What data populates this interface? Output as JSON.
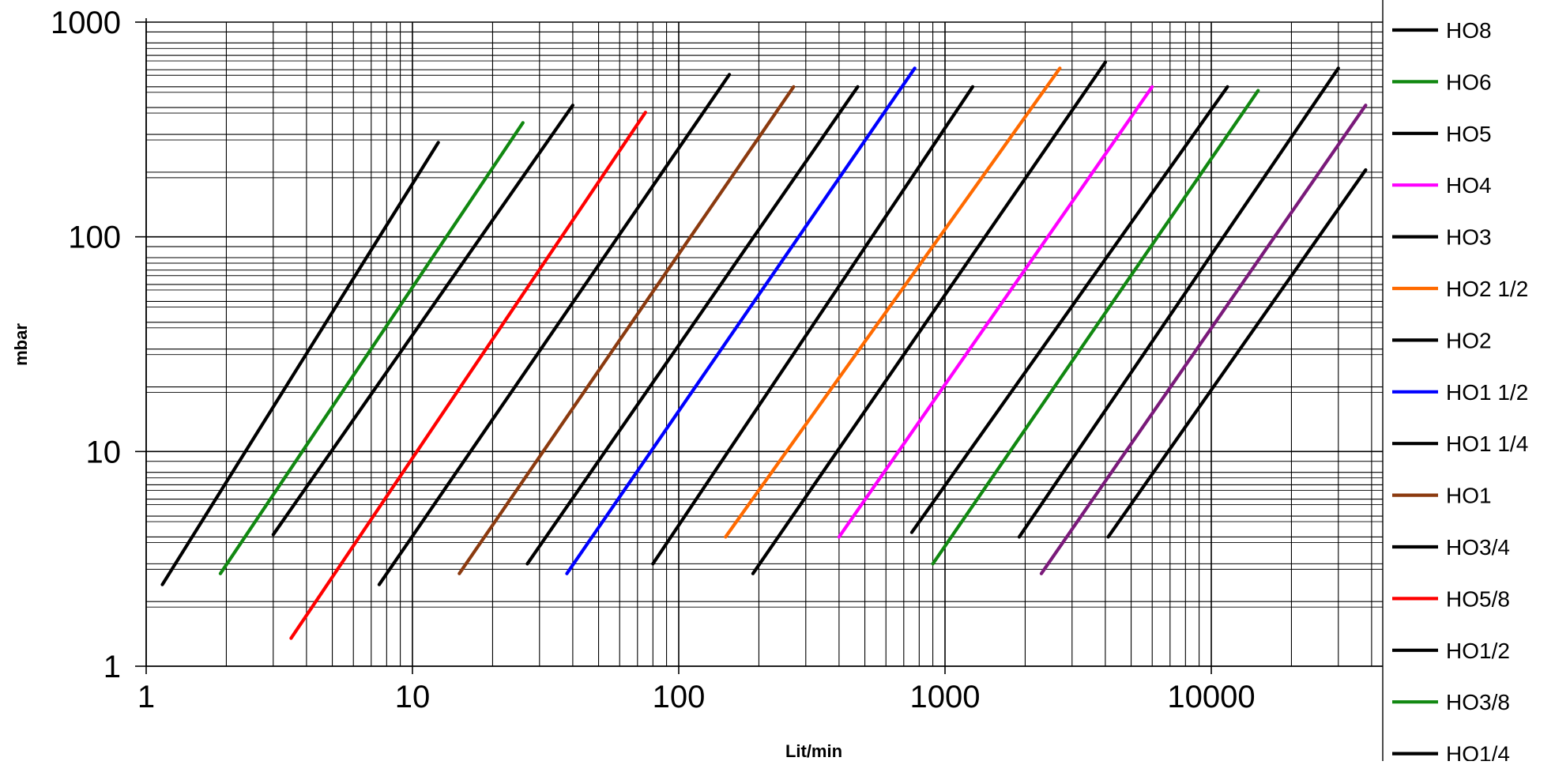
{
  "chart_data": {
    "type": "line",
    "xscale": "log",
    "yscale": "log",
    "xlabel": "Lit/min",
    "ylabel": "mbar",
    "xlim": [
      1,
      40000
    ],
    "ylim": [
      1,
      1000
    ],
    "grid": true,
    "legend_placement": "right",
    "x_ticks": [
      1,
      10,
      100,
      1000,
      10000
    ],
    "x_tick_labels": [
      "1",
      "10",
      "100",
      "1000",
      "10000"
    ],
    "y_ticks": [
      1,
      10,
      100,
      1000
    ],
    "y_tick_labels": [
      "1",
      "10",
      "100",
      "1000"
    ],
    "series": [
      {
        "name": "HO1/4",
        "color": "#000000",
        "points": [
          [
            1.15,
            2.4
          ],
          [
            12.5,
            275
          ]
        ]
      },
      {
        "name": "HO3/8",
        "color": "#118811",
        "points": [
          [
            1.9,
            2.7
          ],
          [
            26,
            340
          ]
        ]
      },
      {
        "name": "HO1/2",
        "color": "#000000",
        "points": [
          [
            3.0,
            4.1
          ],
          [
            40,
            410
          ]
        ]
      },
      {
        "name": "HO5/8",
        "color": "#ff0000",
        "points": [
          [
            3.5,
            1.35
          ],
          [
            75,
            380
          ]
        ]
      },
      {
        "name": "HO3/4",
        "color": "#000000",
        "points": [
          [
            7.5,
            2.4
          ],
          [
            155,
            570
          ]
        ]
      },
      {
        "name": "HO1",
        "color": "#8b3a0f",
        "points": [
          [
            15,
            2.7
          ],
          [
            270,
            500
          ]
        ]
      },
      {
        "name": "HO1 1/4",
        "color": "#000000",
        "points": [
          [
            27,
            3.0
          ],
          [
            470,
            500
          ]
        ]
      },
      {
        "name": "HO1 1/2",
        "color": "#0000ff",
        "points": [
          [
            38,
            2.7
          ],
          [
            770,
            610
          ]
        ]
      },
      {
        "name": "HO2",
        "color": "#000000",
        "points": [
          [
            80,
            3.0
          ],
          [
            1270,
            500
          ]
        ]
      },
      {
        "name": "HO2 1/2",
        "color": "#ff6a00",
        "points": [
          [
            150,
            4.0
          ],
          [
            2700,
            610
          ]
        ]
      },
      {
        "name": "HO3",
        "color": "#000000",
        "points": [
          [
            190,
            2.7
          ],
          [
            4000,
            650
          ]
        ]
      },
      {
        "name": "HO4",
        "color": "#ff00ff",
        "points": [
          [
            400,
            4.0
          ],
          [
            6000,
            500
          ]
        ]
      },
      {
        "name": "HO5",
        "color": "#000000",
        "points": [
          [
            750,
            4.2
          ],
          [
            11500,
            500
          ]
        ]
      },
      {
        "name": "HO6",
        "color": "#118811",
        "points": [
          [
            900,
            3.0
          ],
          [
            15000,
            480
          ]
        ]
      },
      {
        "name": "HO8",
        "color": "#000000",
        "points": [
          [
            1900,
            4.0
          ],
          [
            30000,
            610
          ]
        ]
      },
      {
        "name": "",
        "color": "#7a1a7a",
        "points": [
          [
            2300,
            2.7
          ],
          [
            38000,
            410
          ]
        ]
      },
      {
        "name": "",
        "color": "#000000",
        "points": [
          [
            4100,
            4.0
          ],
          [
            38000,
            205
          ]
        ]
      }
    ],
    "legend": [
      {
        "label": "HO8",
        "color": "#000000"
      },
      {
        "label": "HO6",
        "color": "#118811"
      },
      {
        "label": "HO5",
        "color": "#000000"
      },
      {
        "label": "HO4",
        "color": "#ff00ff"
      },
      {
        "label": "HO3",
        "color": "#000000"
      },
      {
        "label": "HO2 1/2",
        "color": "#ff6a00"
      },
      {
        "label": "HO2",
        "color": "#000000"
      },
      {
        "label": "HO1 1/2",
        "color": "#0000ff"
      },
      {
        "label": "HO1 1/4",
        "color": "#000000"
      },
      {
        "label": "HO1",
        "color": "#8b3a0f"
      },
      {
        "label": "HO3/4",
        "color": "#000000"
      },
      {
        "label": "HO5/8",
        "color": "#ff0000"
      },
      {
        "label": "HO1/2",
        "color": "#000000"
      },
      {
        "label": "HO3/8",
        "color": "#118811"
      },
      {
        "label": "HO1/4",
        "color": "#000000"
      }
    ]
  }
}
